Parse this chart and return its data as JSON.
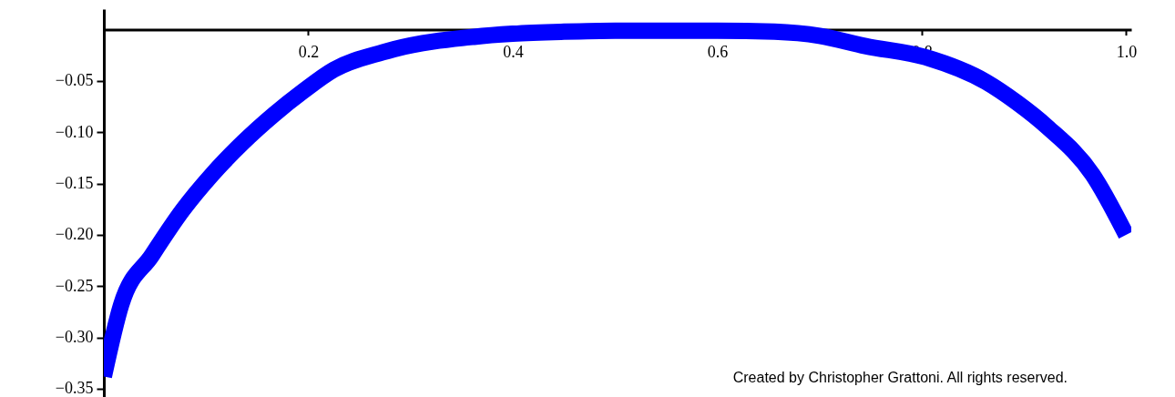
{
  "chart_data": {
    "type": "line",
    "x": [
      0.0,
      0.017,
      0.047,
      0.077,
      0.106,
      0.136,
      0.166,
      0.195,
      0.225,
      0.273,
      0.284,
      0.362,
      0.4,
      0.45,
      0.5,
      0.55,
      0.6,
      0.656,
      0.7,
      0.745,
      0.804,
      0.863,
      0.893,
      0.923,
      0.967,
      1.0
    ],
    "series": [
      {
        "color": "#0000ff",
        "values": [
          -0.338,
          -0.268,
          -0.22,
          -0.176,
          -0.141,
          -0.11,
          -0.083,
          -0.06,
          -0.039,
          -0.022,
          -0.019,
          -0.007,
          -0.004,
          -0.002,
          -0.001,
          -0.001,
          -0.001,
          -0.002,
          -0.006,
          -0.016,
          -0.027,
          -0.051,
          -0.071,
          -0.095,
          -0.141,
          -0.2
        ]
      }
    ],
    "xlim": [
      0,
      1.005
    ],
    "ylim": [
      -0.358,
      0.02
    ],
    "xticks": [
      0.2,
      0.4,
      0.6,
      0.8,
      {
        "value": 1.0,
        "label": "1.0"
      }
    ],
    "yticks": [
      {
        "value": -0.05,
        "label": "−0.05"
      },
      {
        "value": -0.1,
        "label": "−0.10"
      },
      {
        "value": -0.15,
        "label": "−0.15"
      },
      {
        "value": -0.2,
        "label": "−0.20"
      },
      {
        "value": -0.25,
        "label": "−0.25"
      },
      {
        "value": -0.3,
        "label": "−0.30"
      },
      {
        "value": -0.35,
        "label": "−0.35"
      }
    ],
    "grid": false,
    "annotations": [
      "Created by Christopher Grattoni. All rights reserved."
    ]
  }
}
